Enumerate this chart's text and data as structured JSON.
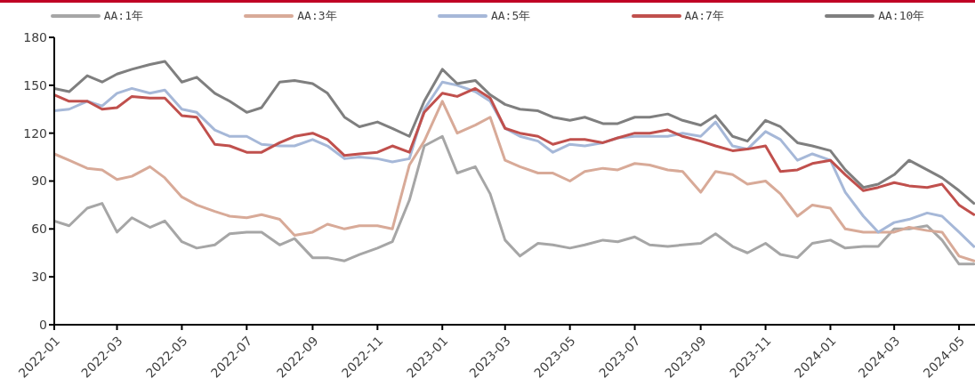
{
  "chart_data": {
    "type": "line",
    "x": [
      "2022-01-01",
      "2022-01-15",
      "2022-02-01",
      "2022-02-15",
      "2022-03-01",
      "2022-03-15",
      "2022-04-01",
      "2022-04-15",
      "2022-05-01",
      "2022-05-15",
      "2022-06-01",
      "2022-06-15",
      "2022-07-01",
      "2022-07-15",
      "2022-08-01",
      "2022-08-15",
      "2022-09-01",
      "2022-09-15",
      "2022-10-01",
      "2022-10-15",
      "2022-11-01",
      "2022-11-15",
      "2022-12-01",
      "2022-12-15",
      "2023-01-01",
      "2023-01-15",
      "2023-02-01",
      "2023-02-15",
      "2023-03-01",
      "2023-03-15",
      "2023-04-01",
      "2023-04-15",
      "2023-05-01",
      "2023-05-15",
      "2023-06-01",
      "2023-06-15",
      "2023-07-01",
      "2023-07-15",
      "2023-08-01",
      "2023-08-15",
      "2023-09-01",
      "2023-09-15",
      "2023-10-01",
      "2023-10-15",
      "2023-11-01",
      "2023-11-15",
      "2023-12-01",
      "2023-12-15",
      "2024-01-01",
      "2024-01-15",
      "2024-02-01",
      "2024-02-15",
      "2024-03-01",
      "2024-03-15",
      "2024-04-01",
      "2024-04-15",
      "2024-05-01",
      "2024-05-15"
    ],
    "series": [
      {
        "name": "AA:1年",
        "color": "#a6a6a6",
        "values": [
          65,
          62,
          73,
          76,
          58,
          67,
          61,
          65,
          52,
          48,
          50,
          57,
          58,
          58,
          50,
          54,
          42,
          42,
          40,
          44,
          48,
          52,
          78,
          112,
          118,
          95,
          99,
          82,
          53,
          43,
          51,
          50,
          48,
          50,
          53,
          52,
          55,
          50,
          49,
          50,
          51,
          57,
          49,
          45,
          51,
          44,
          42,
          51,
          53,
          48,
          49,
          49,
          60,
          60,
          62,
          53,
          38,
          38
        ]
      },
      {
        "name": "AA:3年",
        "color": "#d8aa98",
        "values": [
          107,
          103,
          98,
          97,
          91,
          93,
          99,
          92,
          80,
          75,
          71,
          68,
          67,
          69,
          66,
          56,
          58,
          63,
          60,
          62,
          62,
          60,
          100,
          115,
          140,
          120,
          125,
          130,
          103,
          99,
          95,
          95,
          90,
          96,
          98,
          97,
          101,
          100,
          97,
          96,
          83,
          96,
          94,
          88,
          90,
          82,
          68,
          75,
          73,
          60,
          58,
          58,
          58,
          61,
          59,
          58,
          43,
          40
        ]
      },
      {
        "name": "AA:5年",
        "color": "#a6b8d8",
        "values": [
          134,
          135,
          140,
          137,
          145,
          148,
          145,
          147,
          135,
          133,
          122,
          118,
          118,
          113,
          112,
          112,
          116,
          112,
          104,
          105,
          104,
          102,
          104,
          135,
          152,
          150,
          146,
          140,
          123,
          118,
          115,
          108,
          113,
          112,
          114,
          117,
          118,
          118,
          118,
          120,
          118,
          127,
          112,
          110,
          121,
          116,
          103,
          107,
          103,
          83,
          68,
          58,
          64,
          66,
          70,
          68,
          58,
          49
        ]
      },
      {
        "name": "AA:7年",
        "color": "#c0504d",
        "values": [
          144,
          140,
          140,
          135,
          136,
          143,
          142,
          142,
          131,
          130,
          113,
          112,
          108,
          108,
          114,
          118,
          120,
          116,
          106,
          107,
          108,
          112,
          108,
          133,
          145,
          143,
          148,
          142,
          123,
          120,
          118,
          113,
          116,
          116,
          114,
          117,
          120,
          120,
          122,
          118,
          115,
          112,
          109,
          110,
          112,
          96,
          97,
          101,
          103,
          94,
          84,
          86,
          89,
          87,
          86,
          88,
          75,
          69
        ]
      },
      {
        "name": "AA:10年",
        "color": "#7f7f7f",
        "values": [
          148,
          146,
          156,
          152,
          157,
          160,
          163,
          165,
          152,
          155,
          145,
          140,
          133,
          136,
          152,
          153,
          151,
          145,
          130,
          124,
          127,
          123,
          118,
          140,
          160,
          151,
          153,
          144,
          138,
          135,
          134,
          130,
          128,
          130,
          126,
          126,
          130,
          130,
          132,
          128,
          125,
          131,
          118,
          115,
          128,
          124,
          114,
          112,
          109,
          97,
          86,
          88,
          94,
          103,
          97,
          92,
          84,
          76
        ]
      }
    ],
    "xlim": [
      "2022-01-01",
      "2024-05-16"
    ],
    "xticks": [
      "2022-01",
      "2022-03",
      "2022-05",
      "2022-07",
      "2022-09",
      "2022-11",
      "2023-01",
      "2023-03",
      "2023-05",
      "2023-07",
      "2023-09",
      "2023-11",
      "2024-01",
      "2024-03",
      "2024-05"
    ],
    "ylim": [
      0,
      180
    ],
    "yticks": [
      0,
      30,
      60,
      90,
      120,
      150,
      180
    ],
    "grid": false,
    "legend": "top",
    "marker": "none",
    "line_style": "solid"
  }
}
